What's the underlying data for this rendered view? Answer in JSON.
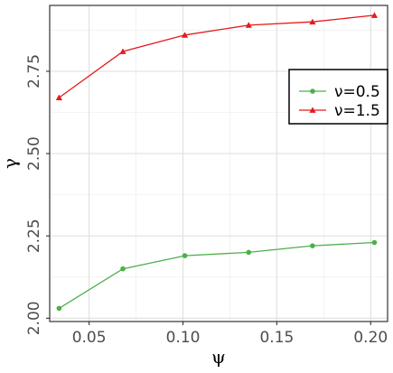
{
  "chart_data": {
    "type": "line",
    "title": "",
    "xlabel": "ψ",
    "ylabel": "γ",
    "x": [
      0.034,
      0.068,
      0.101,
      0.135,
      0.169,
      0.202
    ],
    "xlim": [
      0.029,
      0.209
    ],
    "ylim": [
      1.99,
      2.95
    ],
    "x_ticks": [
      0.05,
      0.1,
      0.15,
      0.2
    ],
    "x_tick_labels": [
      "0.05",
      "0.10",
      "0.15",
      "0.20"
    ],
    "y_ticks": [
      2.0,
      2.25,
      2.5,
      2.75
    ],
    "y_tick_labels": [
      "2.00",
      "2.25",
      "2.50",
      "2.75"
    ],
    "grid": true,
    "legend_position": "right",
    "series": [
      {
        "name": "ν=0.5",
        "values": [
          2.03,
          2.15,
          2.19,
          2.2,
          2.22,
          2.23
        ],
        "color": "#4daf4a",
        "marker": "circle"
      },
      {
        "name": "ν=1.5",
        "values": [
          2.67,
          2.81,
          2.86,
          2.89,
          2.9,
          2.92
        ],
        "color": "#e41a1c",
        "marker": "triangle"
      }
    ]
  }
}
